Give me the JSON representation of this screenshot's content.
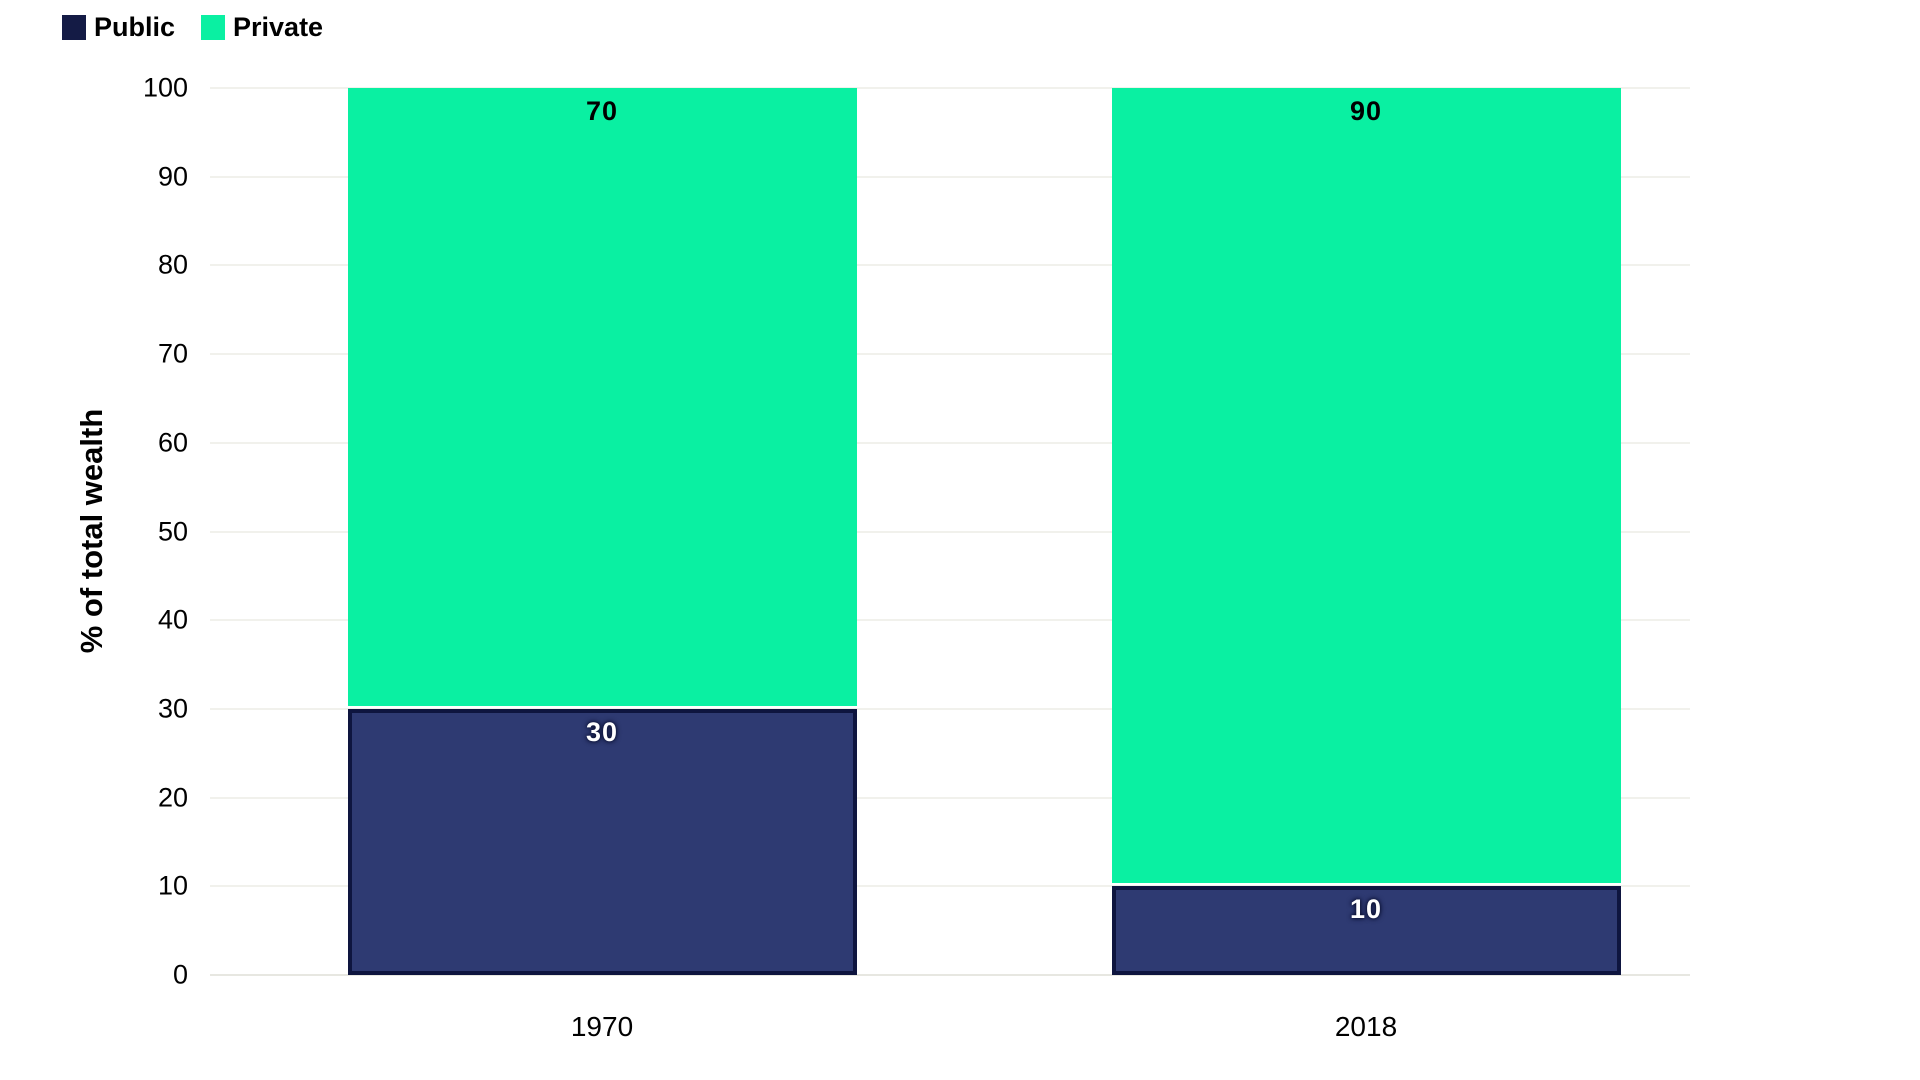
{
  "legend": {
    "items": [
      {
        "label": "Public",
        "color": "#141b45"
      },
      {
        "label": "Private",
        "color": "#0af0a2"
      }
    ]
  },
  "y_axis": {
    "title": "% of total wealth"
  },
  "chart_data": {
    "type": "bar",
    "stacked": true,
    "categories": [
      "1970",
      "2018"
    ],
    "series": [
      {
        "name": "Public",
        "values": [
          30,
          10
        ],
        "color": "#2e3a72",
        "border_color": "#0e153f",
        "label_color": "#ffffff"
      },
      {
        "name": "Private",
        "values": [
          70,
          90
        ],
        "color": "#0af0a2",
        "border_color": null,
        "label_color": "#000000"
      }
    ],
    "title": "",
    "xlabel": "",
    "ylabel": "% of total wealth",
    "ylim": [
      0,
      100
    ],
    "ytick_step": 10,
    "grid": true,
    "gridline_color": "#f1f1ec",
    "legend_position": "top-left",
    "bar_labels": true,
    "background": "#ffffff"
  }
}
